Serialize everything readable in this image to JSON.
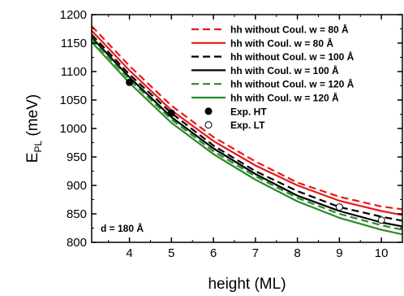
{
  "chart_data": {
    "type": "line",
    "title": "",
    "xlabel": "height (ML)",
    "ylabel": {
      "main": "E",
      "sub": "PL",
      "unit": " (meV)"
    },
    "xlim": [
      3.1,
      10.5
    ],
    "ylim": [
      800,
      1200
    ],
    "xticks": [
      4,
      5,
      6,
      7,
      8,
      9,
      10
    ],
    "yticks": [
      800,
      850,
      900,
      950,
      1000,
      1050,
      1100,
      1150,
      1200
    ],
    "grid": false,
    "legend_position": "top-right",
    "annotation": "d = 180 Å",
    "series": [
      {
        "name": "hh without Coul. w = 80 Å",
        "color": "#e8191b",
        "dash": true,
        "x": [
          3.1,
          4,
          5,
          6,
          7,
          8,
          9,
          10,
          10.5
        ],
        "y": [
          1180,
          1110,
          1040,
          985,
          942,
          905,
          880,
          863,
          858
        ]
      },
      {
        "name": "hh with Coul. w = 80 Å",
        "color": "#e8191b",
        "dash": false,
        "x": [
          3.1,
          4,
          5,
          6,
          7,
          8,
          9,
          10,
          10.5
        ],
        "y": [
          1172,
          1102,
          1032,
          978,
          935,
          900,
          873,
          855,
          848
        ]
      },
      {
        "name": "hh without Coul. w = 100 Å",
        "color": "#000000",
        "dash": true,
        "x": [
          3.1,
          4,
          5,
          6,
          7,
          8,
          9,
          10,
          10.5
        ],
        "y": [
          1165,
          1095,
          1027,
          970,
          925,
          890,
          862,
          845,
          838
        ]
      },
      {
        "name": "hh with Coul. w = 100 Å",
        "color": "#000000",
        "dash": false,
        "x": [
          3.1,
          4,
          5,
          6,
          7,
          8,
          9,
          10,
          10.5
        ],
        "y": [
          1160,
          1090,
          1020,
          965,
          920,
          882,
          855,
          835,
          828
        ]
      },
      {
        "name": "hh without Coul. w = 120 Å",
        "color": "#2a8a2a",
        "dash": true,
        "x": [
          3.1,
          4,
          5,
          6,
          7,
          8,
          9,
          10,
          10.5
        ],
        "y": [
          1157,
          1086,
          1016,
          960,
          916,
          878,
          850,
          830,
          822
        ]
      },
      {
        "name": "hh with Coul. w = 120 Å",
        "color": "#2a8a2a",
        "dash": false,
        "x": [
          3.1,
          4,
          5,
          6,
          7,
          8,
          9,
          10,
          10.5
        ],
        "y": [
          1152,
          1080,
          1010,
          955,
          910,
          872,
          843,
          822,
          814
        ]
      }
    ],
    "markers": [
      {
        "name": "Exp. HT",
        "fill": "#000000",
        "x": [
          4,
          5
        ],
        "y": [
          1081,
          1027
        ]
      },
      {
        "name": "Exp. LT",
        "fill": "#ffffff",
        "x": [
          9,
          10
        ],
        "y": [
          862,
          839
        ]
      }
    ]
  }
}
